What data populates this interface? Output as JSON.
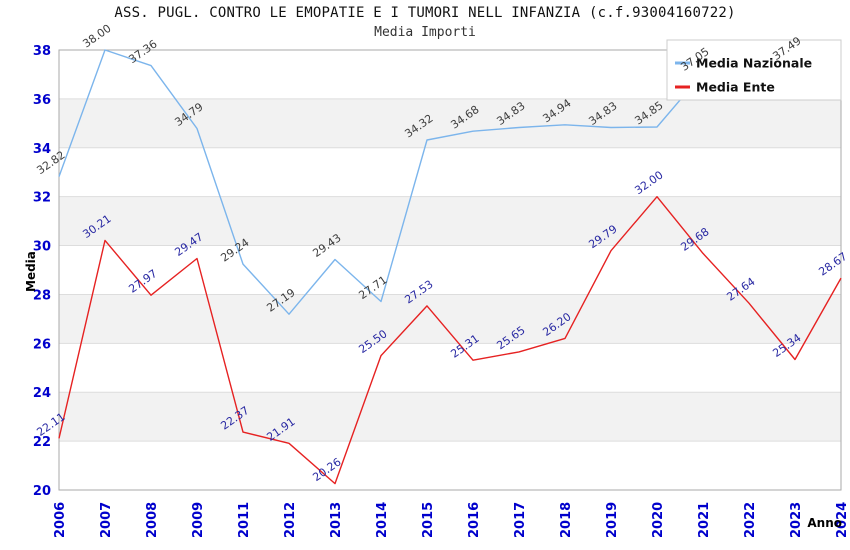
{
  "title": "ASS. PUGL. CONTRO LE EMOPATIE E I TUMORI NELL INFANZIA (c.f.93004160722)",
  "subtitle": "Media Importi",
  "axes": {
    "y_title": "Media",
    "x_title": "Anno"
  },
  "legend": {
    "position": "top-right",
    "items": [
      {
        "label": "Media Nazionale",
        "color": "#7cb5ec"
      },
      {
        "label": "Media Ente",
        "color": "#e62222"
      }
    ]
  },
  "colors": {
    "tick_label": "#0000cc",
    "band_fill": "#f2f2f2",
    "grid_line": "#dddddd",
    "plot_border": "#aaaaaa",
    "legend_border": "#cccccc",
    "nazionale_line": "#7cb5ec",
    "nazionale_label": "#3d3d3d",
    "ente_line": "#e62222",
    "ente_label": "#2929a3"
  },
  "chart_data": {
    "type": "line",
    "title": "ASS. PUGL. CONTRO LE EMOPATIE E I TUMORI NELL INFANZIA (c.f.93004160722)",
    "subtitle": "Media Importi",
    "xlabel": "Anno",
    "ylabel": "Media",
    "ylim": [
      20,
      38
    ],
    "y_ticks": [
      20,
      22,
      24,
      26,
      28,
      30,
      32,
      34,
      36,
      38
    ],
    "grid": "horizontal-bands",
    "legend_position": "top-right-overlay",
    "categories": [
      "2006",
      "2007",
      "2008",
      "2009",
      "2011",
      "2012",
      "2013",
      "2014",
      "2015",
      "2016",
      "2017",
      "2018",
      "2019",
      "2020",
      "2021",
      "2022",
      "2023",
      "2024"
    ],
    "series": [
      {
        "name": "Media Nazionale",
        "color": "#7cb5ec",
        "label_color": "#3d3d3d",
        "values": [
          32.82,
          38.0,
          37.36,
          34.79,
          29.24,
          27.19,
          29.43,
          27.71,
          34.32,
          34.68,
          34.83,
          34.94,
          34.83,
          34.85,
          37.05,
          null,
          37.49,
          null
        ],
        "labels": [
          "32.82",
          "38.00",
          "37.36",
          "34.79",
          "29.24",
          "27.19",
          "29.43",
          "27.71",
          "34.32",
          "34.68",
          "34.83",
          "34.94",
          "34.83",
          "34.85",
          "37.05",
          null,
          "37.49",
          null
        ]
      },
      {
        "name": "Media Ente",
        "color": "#e62222",
        "label_color": "#2929a3",
        "values": [
          22.11,
          30.21,
          27.97,
          29.47,
          22.37,
          21.91,
          20.26,
          25.5,
          27.53,
          25.31,
          25.65,
          26.2,
          29.79,
          32.0,
          29.68,
          27.64,
          25.34,
          28.67
        ],
        "labels": [
          "22.11",
          "30.21",
          "27.97",
          "29.47",
          "22.37",
          "21.91",
          "20.26",
          "25.50",
          "27.53",
          "25.31",
          "25.65",
          "26.20",
          "29.79",
          "32.00",
          "29.68",
          "27.64",
          "25.34",
          "28.67"
        ]
      }
    ]
  }
}
